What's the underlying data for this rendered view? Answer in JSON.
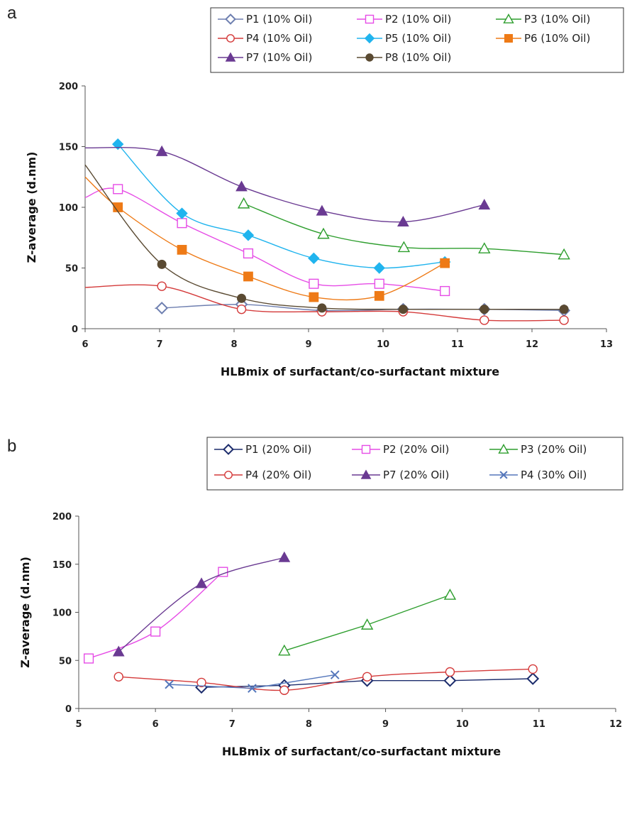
{
  "chart_data": [
    {
      "panel": "a",
      "type": "scatter",
      "xlabel": "HLBmix of surfactant/co-surfactant mixture",
      "ylabel": "Z-average (d.nm)",
      "xlim": [
        6,
        13
      ],
      "ylim": [
        0,
        200
      ],
      "xticks": [
        "6",
        "7",
        "8",
        "9",
        "10",
        "11",
        "12",
        "13"
      ],
      "yticks": [
        "0",
        "50",
        "100",
        "150",
        "200"
      ],
      "grid": false,
      "legend": "top",
      "series": [
        {
          "name": "P1  (10% Oil)",
          "color": "#6e7fb0",
          "marker": "diamond-open",
          "fill": false,
          "lineStart": 7.0,
          "lineStartY": 17,
          "points": [
            [
              7.03,
              17
            ],
            [
              8.1,
              20
            ],
            [
              9.18,
              15
            ],
            [
              10.27,
              16
            ],
            [
              11.36,
              16
            ],
            [
              12.43,
              15
            ]
          ]
        },
        {
          "name": "P2  (10% Oil)",
          "color": "#e64ce6",
          "marker": "square-open",
          "fill": false,
          "lineStart": 6.0,
          "lineStartY": 108,
          "points": [
            [
              6.44,
              115
            ],
            [
              7.3,
              87
            ],
            [
              8.19,
              62
            ],
            [
              9.07,
              37
            ],
            [
              9.95,
              37
            ],
            [
              10.83,
              31
            ]
          ]
        },
        {
          "name": "P3  (10% Oil)",
          "color": "#2e9e2e",
          "marker": "triangle-open",
          "fill": false,
          "points": [
            [
              8.13,
              103
            ],
            [
              9.2,
              78
            ],
            [
              10.28,
              67
            ],
            [
              11.36,
              66
            ],
            [
              12.43,
              61
            ]
          ]
        },
        {
          "name": "P4  (10% Oil)",
          "color": "#d43a3a",
          "marker": "circle-open",
          "fill": false,
          "lineStart": 6.0,
          "lineStartY": 34,
          "points": [
            [
              7.03,
              35
            ],
            [
              8.1,
              16
            ],
            [
              9.18,
              14
            ],
            [
              10.27,
              14
            ],
            [
              11.36,
              7
            ],
            [
              12.43,
              7
            ]
          ]
        },
        {
          "name": "P5  (10% Oil)",
          "color": "#20b4ee",
          "marker": "diamond-filled",
          "fill": true,
          "points": [
            [
              6.44,
              152
            ],
            [
              7.3,
              95
            ],
            [
              8.19,
              77
            ],
            [
              9.07,
              58
            ],
            [
              9.95,
              50
            ],
            [
              10.83,
              55
            ]
          ]
        },
        {
          "name": "P6  (10% Oil)",
          "color": "#ee7a16",
          "marker": "square-filled",
          "fill": true,
          "lineStart": 6.0,
          "lineStartY": 125,
          "points": [
            [
              6.44,
              100
            ],
            [
              7.3,
              65
            ],
            [
              8.19,
              43
            ],
            [
              9.07,
              26
            ],
            [
              9.95,
              27
            ],
            [
              10.83,
              54
            ]
          ]
        },
        {
          "name": "P7  (10% Oil)",
          "color": "#6a3a92",
          "marker": "triangle-filled",
          "fill": true,
          "lineStart": 6.0,
          "lineStartY": 149,
          "points": [
            [
              7.03,
              146
            ],
            [
              8.1,
              117
            ],
            [
              9.18,
              97
            ],
            [
              10.27,
              88
            ],
            [
              11.36,
              102
            ]
          ]
        },
        {
          "name": "P8  (10% Oil)",
          "color": "#5a4a32",
          "marker": "circle-filled",
          "fill": true,
          "lineStart": 6.0,
          "lineStartY": 135,
          "points": [
            [
              7.03,
              53
            ],
            [
              8.1,
              25
            ],
            [
              9.18,
              17
            ],
            [
              10.27,
              16
            ],
            [
              11.36,
              16
            ],
            [
              12.43,
              16
            ]
          ]
        }
      ]
    },
    {
      "panel": "b",
      "type": "scatter",
      "xlabel": "HLBmix of surfactant/co-surfactant mixture",
      "ylabel": "Z-average (d.nm)",
      "xlim": [
        5,
        12
      ],
      "ylim": [
        0,
        200
      ],
      "xticks": [
        "5",
        "6",
        "7",
        "8",
        "9",
        "10",
        "11",
        "12"
      ],
      "yticks": [
        "0",
        "50",
        "100",
        "150",
        "200"
      ],
      "grid": false,
      "legend": "top",
      "series": [
        {
          "name": "P1 (20% Oil)",
          "color": "#1c2c6c",
          "marker": "diamond-open",
          "fill": false,
          "line": "straight",
          "points": [
            [
              6.6,
              22
            ],
            [
              7.68,
              24
            ],
            [
              8.76,
              29
            ],
            [
              9.84,
              29
            ],
            [
              10.92,
              31
            ]
          ]
        },
        {
          "name": "P2 (20% Oil)",
          "color": "#e64ce6",
          "marker": "square-open",
          "fill": false,
          "points": [
            [
              5.13,
              52
            ],
            [
              6.0,
              80
            ],
            [
              6.88,
              142
            ]
          ]
        },
        {
          "name": "P3 (20% Oil)",
          "color": "#2e9e2e",
          "marker": "triangle-open",
          "fill": false,
          "line": "straight",
          "points": [
            [
              7.68,
              60
            ],
            [
              8.76,
              87
            ],
            [
              9.84,
              118
            ]
          ]
        },
        {
          "name": "P4 (20% Oil)",
          "color": "#d43a3a",
          "marker": "circle-open",
          "fill": false,
          "points": [
            [
              5.52,
              33
            ],
            [
              6.6,
              27
            ],
            [
              7.68,
              19
            ],
            [
              8.76,
              33
            ],
            [
              9.84,
              38
            ],
            [
              10.92,
              41
            ]
          ]
        },
        {
          "name": "P7 (20% Oil)",
          "color": "#6a3a92",
          "marker": "triangle-filled",
          "fill": true,
          "points": [
            [
              5.52,
              59
            ],
            [
              6.6,
              130
            ],
            [
              7.68,
              157
            ]
          ]
        },
        {
          "name": "P4 (30% Oil)",
          "color": "#5577bb",
          "marker": "x",
          "fill": false,
          "line": "straight",
          "points": [
            [
              6.18,
              25
            ],
            [
              7.26,
              21
            ],
            [
              8.34,
              35
            ]
          ]
        }
      ]
    }
  ]
}
